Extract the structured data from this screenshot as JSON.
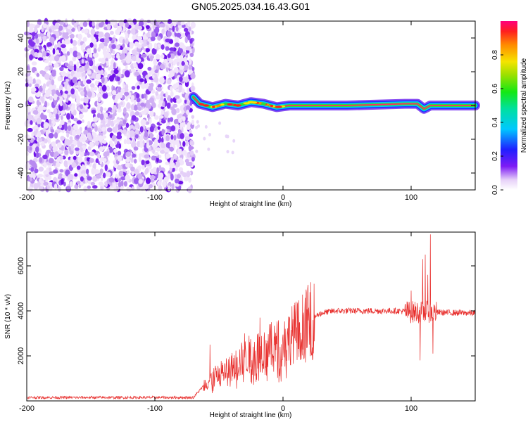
{
  "title": "GN05.2025.034.16.43.G01",
  "chart_data": [
    {
      "type": "heatmap",
      "xlabel": "Height of straight line (km)",
      "ylabel": "Frequency (Hz)",
      "xlim": [
        -200,
        150
      ],
      "ylim": [
        -50,
        50
      ],
      "xticks": [
        -200,
        -100,
        0,
        100
      ],
      "yticks": [
        -40,
        -20,
        0,
        20,
        40
      ],
      "noise_region_x": [
        -200,
        -70
      ],
      "signal_track": [
        {
          "x": -70,
          "y": 5
        },
        {
          "x": -65,
          "y": 1
        },
        {
          "x": -55,
          "y": -1
        },
        {
          "x": -45,
          "y": 1
        },
        {
          "x": -35,
          "y": 0
        },
        {
          "x": -25,
          "y": 2
        },
        {
          "x": -15,
          "y": 1
        },
        {
          "x": -5,
          "y": -1
        },
        {
          "x": 5,
          "y": 0
        },
        {
          "x": 50,
          "y": 0
        },
        {
          "x": 95,
          "y": 1
        },
        {
          "x": 105,
          "y": 1
        },
        {
          "x": 110,
          "y": -2
        },
        {
          "x": 115,
          "y": 0
        },
        {
          "x": 150,
          "y": 0
        }
      ],
      "colorbar": {
        "label": "Normalized spectral amplitude",
        "range": [
          0,
          1
        ],
        "ticks": [
          "0.0",
          "0.2",
          "0.4",
          "0.6",
          "0.8"
        ]
      }
    },
    {
      "type": "line",
      "xlabel": "Height of straight line (km)",
      "ylabel": "SNR (10 * v/v)",
      "xlim": [
        -200,
        150
      ],
      "ylim": [
        0,
        7500
      ],
      "xticks": [
        -200,
        -100,
        0,
        100
      ],
      "yticks": [
        2000,
        4000,
        6000
      ],
      "color": "#e8312f",
      "series_envelope": [
        {
          "x": -200,
          "y": 150
        },
        {
          "x": -70,
          "y": 150
        },
        {
          "x": -60,
          "y": 800
        },
        {
          "x": -50,
          "y": 1200
        },
        {
          "x": -40,
          "y": 1500
        },
        {
          "x": -30,
          "y": 1900
        },
        {
          "x": -20,
          "y": 2200
        },
        {
          "x": -10,
          "y": 2400
        },
        {
          "x": 0,
          "y": 2600
        },
        {
          "x": 10,
          "y": 3100
        },
        {
          "x": 20,
          "y": 3600
        },
        {
          "x": 30,
          "y": 3900
        },
        {
          "x": 40,
          "y": 4000
        },
        {
          "x": 90,
          "y": 4000
        },
        {
          "x": 100,
          "y": 3950
        },
        {
          "x": 150,
          "y": 3900
        }
      ],
      "spikes": [
        {
          "x": -57,
          "y": 2500
        },
        {
          "x": -30,
          "y": 3000
        },
        {
          "x": -18,
          "y": 3700
        },
        {
          "x": 100,
          "y": 4900
        },
        {
          "x": 107,
          "y": 1800
        },
        {
          "x": 109,
          "y": 6300
        },
        {
          "x": 111,
          "y": 6500
        },
        {
          "x": 113,
          "y": 5600
        },
        {
          "x": 115,
          "y": 7400
        },
        {
          "x": 117,
          "y": 2100
        }
      ]
    }
  ]
}
